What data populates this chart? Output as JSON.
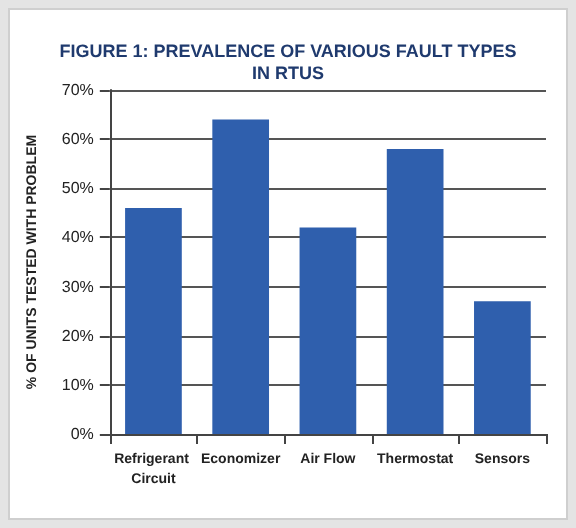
{
  "chart_data": {
    "type": "bar",
    "title": "FIGURE 1: PREVALENCE OF VARIOUS FAULT TYPES\nIN RTUS",
    "ylabel": "% OF UNITS TESTED WITH PROBLEM",
    "categories": [
      "Refrigerant Circuit",
      "Economizer",
      "Air Flow",
      "Thermostat",
      "Sensors"
    ],
    "values": [
      46,
      64,
      42,
      58,
      27
    ],
    "color": "#2f5fad",
    "ylim": [
      0,
      70
    ],
    "yticks": [
      {
        "value": 0,
        "label": "0%"
      },
      {
        "value": 10,
        "label": "10%"
      },
      {
        "value": 20,
        "label": "20%"
      },
      {
        "value": 30,
        "label": "30%"
      },
      {
        "value": 40,
        "label": "40%"
      },
      {
        "value": 50,
        "label": "50%"
      },
      {
        "value": 60,
        "label": "60%"
      },
      {
        "value": 70,
        "label": "70%"
      }
    ],
    "grid": "y"
  }
}
